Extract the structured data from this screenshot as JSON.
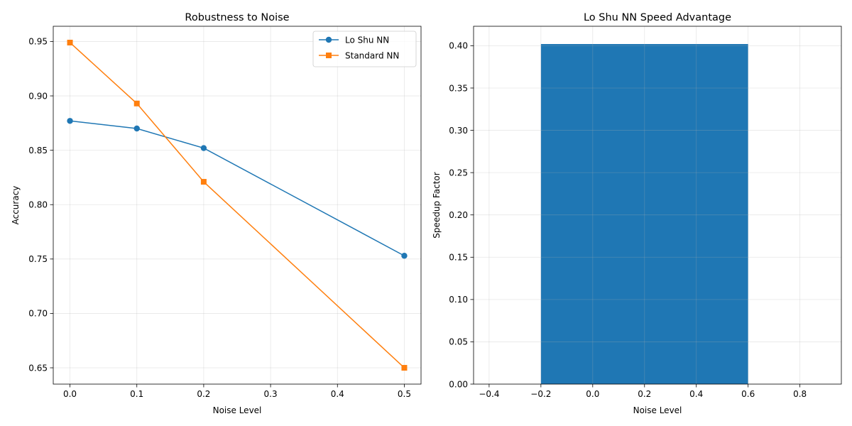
{
  "chart_data": [
    {
      "type": "line",
      "title": "Robustness to Noise",
      "xlabel": "Noise Level",
      "ylabel": "Accuracy",
      "xlim": [
        -0.025,
        0.525
      ],
      "ylim": [
        0.635,
        0.964
      ],
      "xticks": [
        0.0,
        0.1,
        0.2,
        0.3,
        0.4,
        0.5
      ],
      "xtick_labels": [
        "0.0",
        "0.1",
        "0.2",
        "0.3",
        "0.4",
        "0.5"
      ],
      "yticks": [
        0.65,
        0.7,
        0.75,
        0.8,
        0.85,
        0.9,
        0.95
      ],
      "ytick_labels": [
        "0.65",
        "0.70",
        "0.75",
        "0.80",
        "0.85",
        "0.90",
        "0.95"
      ],
      "grid": true,
      "legend": "top-right",
      "x": [
        0.0,
        0.1,
        0.2,
        0.5
      ],
      "series": [
        {
          "name": "Lo Shu NN",
          "values": [
            0.877,
            0.87,
            0.852,
            0.753
          ],
          "color": "#1f77b4",
          "marker": "circle"
        },
        {
          "name": "Standard NN",
          "values": [
            0.949,
            0.893,
            0.821,
            0.65
          ],
          "color": "#ff7f0e",
          "marker": "square"
        }
      ]
    },
    {
      "type": "bar",
      "title": "Lo Shu NN Speed Advantage",
      "xlabel": "Noise Level",
      "ylabel": "Speedup Factor",
      "xlim": [
        -0.46,
        0.96
      ],
      "ylim": [
        0,
        0.423
      ],
      "xticks": [
        -0.4,
        -0.2,
        0.0,
        0.2,
        0.4,
        0.6,
        0.8
      ],
      "xtick_labels": [
        "−0.4",
        "−0.2",
        "0.0",
        "0.2",
        "0.4",
        "0.6",
        "0.8"
      ],
      "yticks": [
        0.0,
        0.05,
        0.1,
        0.15,
        0.2,
        0.25,
        0.3,
        0.35,
        0.4
      ],
      "ytick_labels": [
        "0.00",
        "0.05",
        "0.10",
        "0.15",
        "0.20",
        "0.25",
        "0.30",
        "0.35",
        "0.40"
      ],
      "grid": true,
      "bars": [
        {
          "x": 0.2,
          "width": 0.8,
          "value": 0.402,
          "color": "#1f77b4"
        }
      ]
    }
  ]
}
